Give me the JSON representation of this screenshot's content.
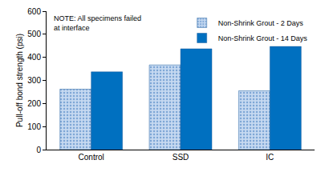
{
  "chart_data": {
    "type": "bar",
    "categories": [
      "Control",
      "SSD",
      "IC"
    ],
    "series": [
      {
        "name": "Non-Shrink Grout - 2 Days",
        "color": "#c6d9f1",
        "marker": "dotted",
        "values": [
          262,
          367,
          255
        ]
      },
      {
        "name": "Non-Shrink Grout - 14 Days",
        "color": "#0070c0",
        "values": [
          337,
          437,
          447
        ]
      }
    ],
    "y_label": "Pull-off bond strength (psi)",
    "ylim": [
      0,
      600
    ],
    "yticks": [
      0,
      100,
      200,
      300,
      400,
      500,
      600
    ],
    "grid": false,
    "legend": "top right",
    "annotations": [
      {
        "text": "NOTE: All specimens failed\nat interface"
      }
    ]
  }
}
